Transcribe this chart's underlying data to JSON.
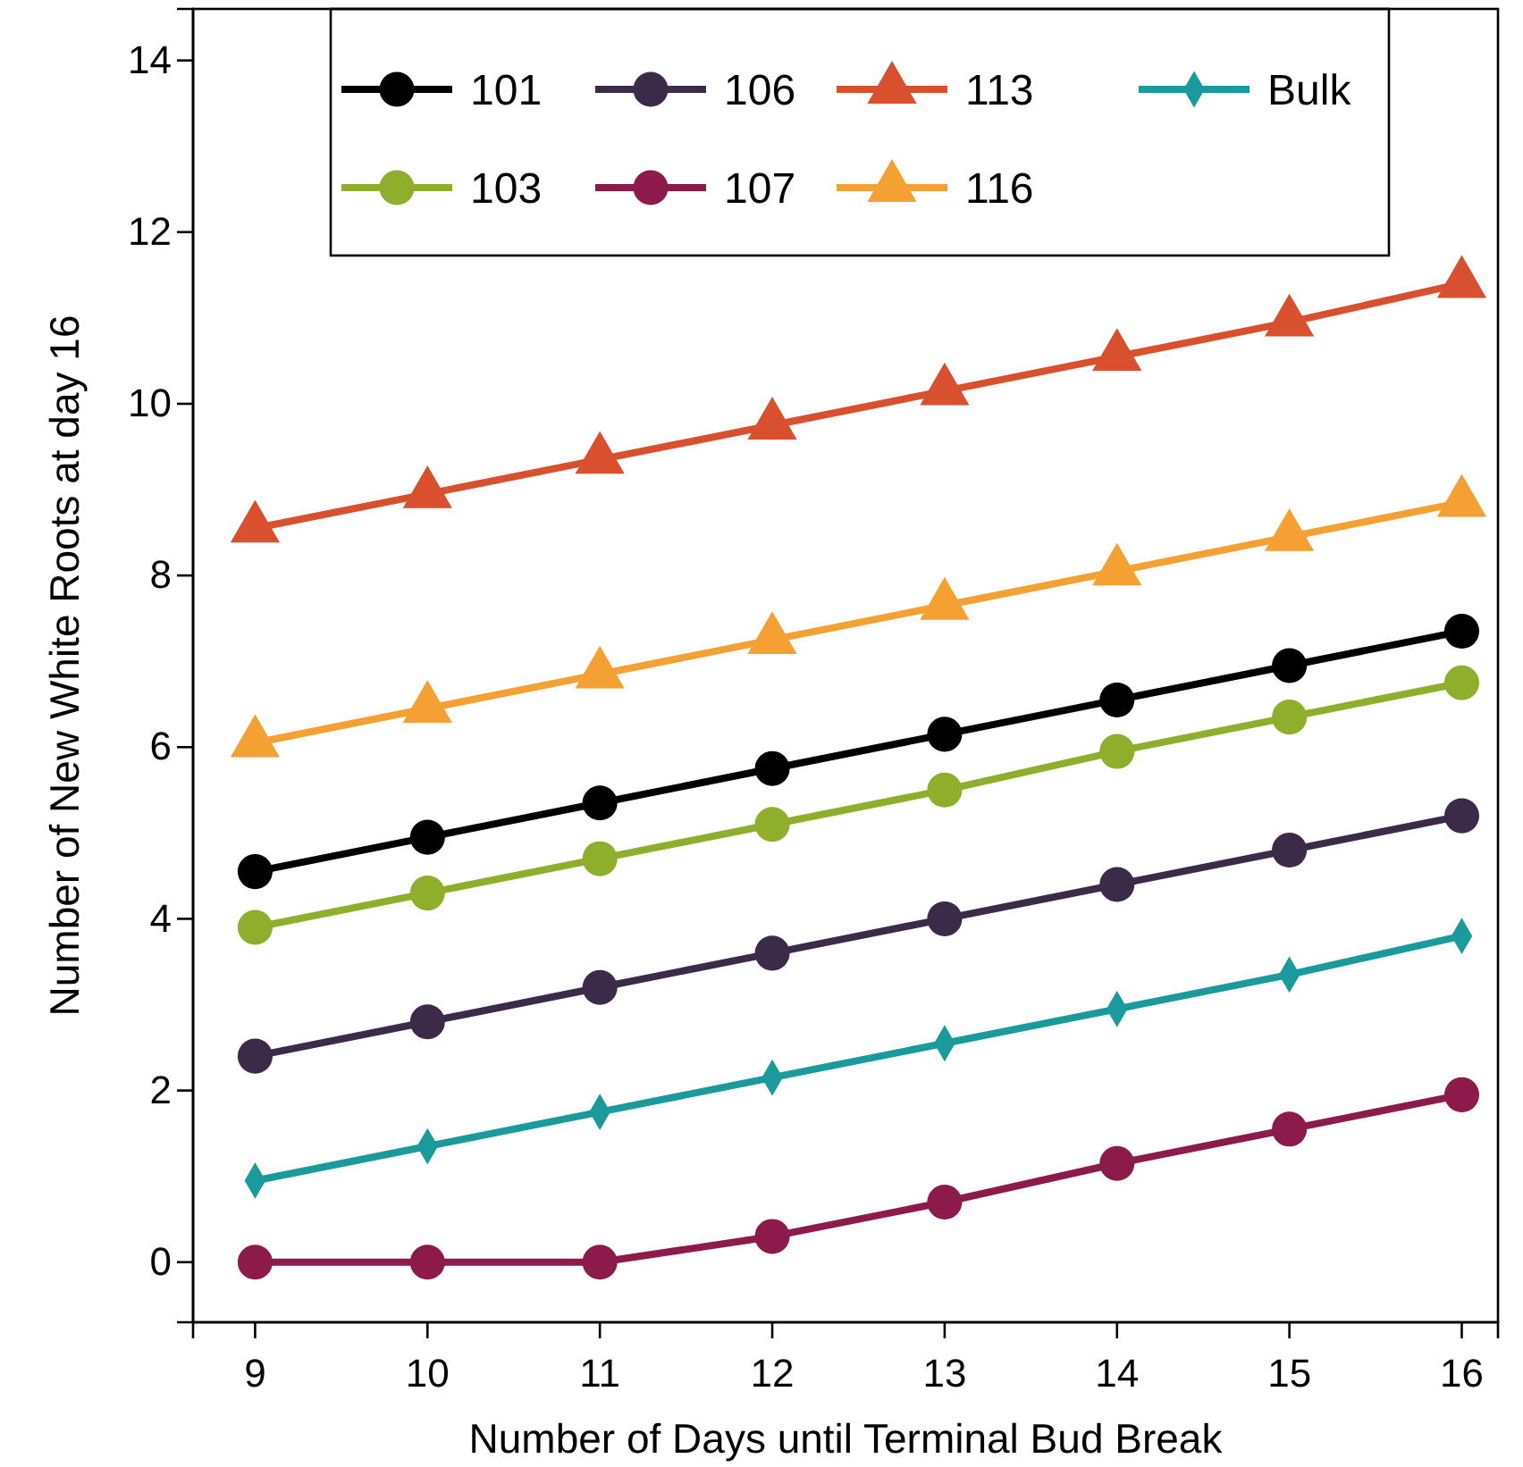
{
  "chart_data": {
    "type": "line",
    "xlabel": "Number of Days until Terminal Bud Break",
    "ylabel": "Number of New White Roots at day 16",
    "x": [
      9,
      10,
      11,
      12,
      13,
      14,
      15,
      16
    ],
    "xlim": [
      8.64,
      16.21
    ],
    "xticks": [
      9,
      10,
      11,
      12,
      13,
      14,
      15,
      16
    ],
    "ylim": [
      -0.7,
      14.6
    ],
    "yticks": [
      0,
      2,
      4,
      6,
      8,
      10,
      12,
      14
    ],
    "grid": false,
    "legend": "top",
    "line_style": "solid",
    "series": [
      {
        "name": "101",
        "color": "#000000",
        "marker": "circle",
        "values": [
          4.55,
          4.95,
          5.35,
          5.75,
          6.15,
          6.55,
          6.95,
          7.35
        ]
      },
      {
        "name": "103",
        "color": "#8fae2b",
        "marker": "circle",
        "values": [
          3.9,
          4.3,
          4.7,
          5.1,
          5.5,
          5.95,
          6.35,
          6.75
        ]
      },
      {
        "name": "106",
        "color": "#3b2a48",
        "marker": "circle",
        "values": [
          2.4,
          2.8,
          3.2,
          3.6,
          4.0,
          4.4,
          4.8,
          5.2
        ]
      },
      {
        "name": "107",
        "color": "#8c1a4b",
        "marker": "circle",
        "values": [
          0,
          0,
          0,
          0.3,
          0.7,
          1.15,
          1.55,
          1.95
        ]
      },
      {
        "name": "113",
        "color": "#d9502f",
        "marker": "triangle",
        "values": [
          8.55,
          8.95,
          9.35,
          9.75,
          10.15,
          10.55,
          10.95,
          11.4
        ]
      },
      {
        "name": "116",
        "color": "#f5a032",
        "marker": "triangle",
        "values": [
          6.05,
          6.45,
          6.85,
          7.25,
          7.65,
          8.05,
          8.45,
          8.85
        ]
      },
      {
        "name": "Bulk",
        "color": "#1a9a9a",
        "marker": "diamond",
        "values": [
          0.95,
          1.35,
          1.75,
          2.15,
          2.55,
          2.95,
          3.35,
          3.8
        ]
      }
    ]
  }
}
